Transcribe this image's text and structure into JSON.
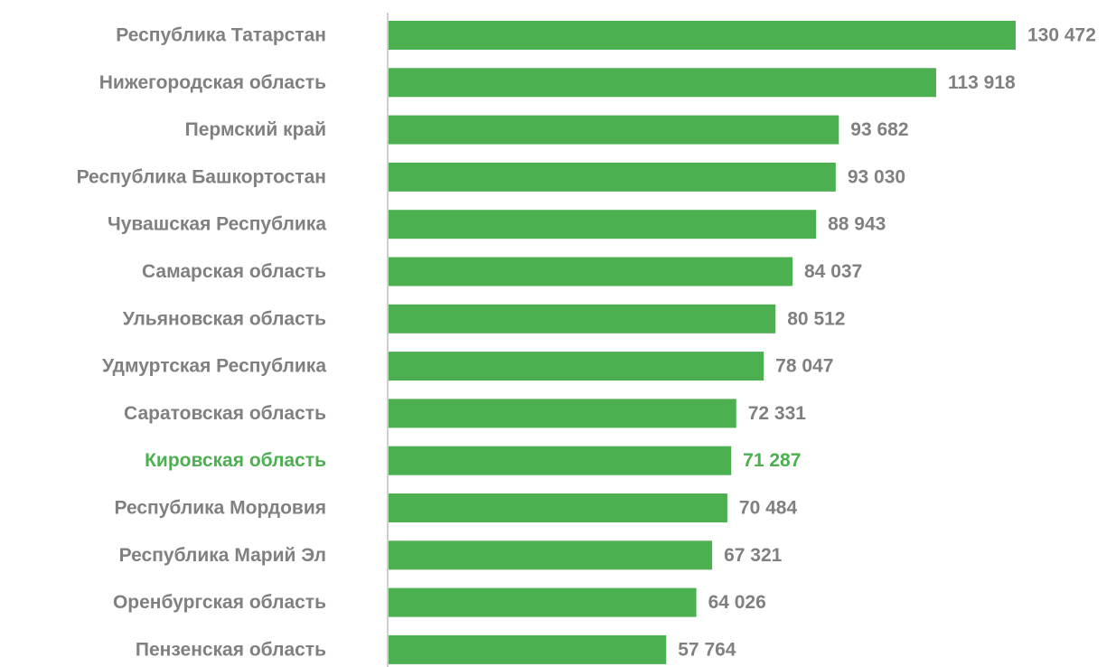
{
  "chart_data": {
    "type": "bar",
    "orientation": "horizontal",
    "title": "",
    "xlabel": "",
    "ylabel": "",
    "categories": [
      "Республика Татарстан",
      "Нижегородская область",
      "Пермский край",
      "Республика Башкортостан",
      "Чувашская Республика",
      "Самарская область",
      "Ульяновская область",
      "Удмуртская Республика",
      "Саратовская область",
      "Кировская область",
      "Республика Мордовия",
      "Республика Марий Эл",
      "Оренбургская область",
      "Пензенская область"
    ],
    "values": [
      130472,
      113918,
      93682,
      93030,
      88943,
      84037,
      80512,
      78047,
      72331,
      71287,
      70484,
      67321,
      64026,
      57764
    ],
    "value_labels": [
      "130 472",
      "113 918",
      "93 682",
      "93 030",
      "88 943",
      "84 037",
      "80 512",
      "78 047",
      "72 331",
      "71 287",
      "70 484",
      "67 321",
      "64 026",
      "57 764"
    ],
    "xlim": [
      0,
      130472
    ],
    "highlight_category": "Кировская область",
    "grid": false,
    "legend": "none",
    "colors": {
      "bar": "#4caf50",
      "label": "#808080",
      "highlight_label": "#4caf50",
      "axis": "#bfbfbf"
    }
  }
}
